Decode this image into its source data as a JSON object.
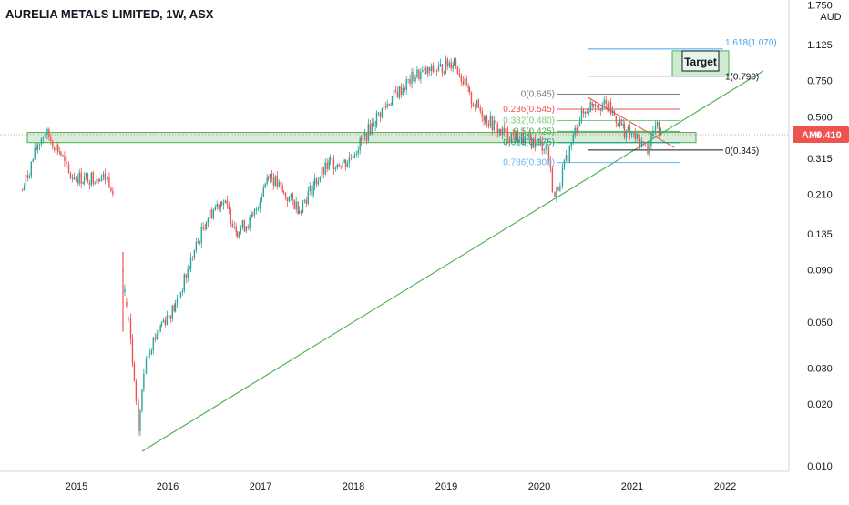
{
  "chart_data": {
    "type": "candlestick",
    "title": "AURELIA METALS LIMITED, 1W, ASX",
    "currency": "AUD",
    "y_scale": "log",
    "ylim": [
      0.009,
      1.75
    ],
    "x_ticks": [
      "2015",
      "2016",
      "2017",
      "2018",
      "2019",
      "2020",
      "2021",
      "2022"
    ],
    "y_ticks": [
      "1.750",
      "1.125",
      "0.750",
      "0.500",
      "0.315",
      "0.210",
      "0.135",
      "0.090",
      "0.050",
      "0.030",
      "0.020",
      "0.010"
    ],
    "last_price": {
      "ticker": "AMI",
      "value": "0.410"
    },
    "colors": {
      "up": "#26a69a",
      "down": "#ef5350",
      "trendline": "#4caf50",
      "zone": "#4caf50",
      "downtrend": "#ef5350",
      "axis_text": "#131722",
      "last_price": "#ef5350"
    },
    "price_path": [
      [
        "2014-06",
        0.22
      ],
      [
        "2014-08",
        0.37
      ],
      [
        "2014-09",
        0.42
      ],
      [
        "2014-11",
        0.33
      ],
      [
        "2014-12",
        0.26
      ],
      [
        "2015-02",
        0.25
      ],
      [
        "2015-04",
        0.26
      ],
      [
        "2015-05",
        0.25
      ],
      [
        "2015-06",
        0.22
      ],
      [
        "2015-07",
        0.09
      ],
      [
        "2015-08",
        0.04
      ],
      [
        "2015-09",
        0.015
      ],
      [
        "2015-10",
        0.035
      ],
      [
        "2015-12",
        0.05
      ],
      [
        "2016-02",
        0.06
      ],
      [
        "2016-04",
        0.1
      ],
      [
        "2016-06",
        0.16
      ],
      [
        "2016-08",
        0.2
      ],
      [
        "2016-10",
        0.14
      ],
      [
        "2016-12",
        0.16
      ],
      [
        "2017-02",
        0.27
      ],
      [
        "2017-04",
        0.21
      ],
      [
        "2017-06",
        0.18
      ],
      [
        "2017-08",
        0.24
      ],
      [
        "2017-10",
        0.3
      ],
      [
        "2017-12",
        0.3
      ],
      [
        "2018-02",
        0.38
      ],
      [
        "2018-04",
        0.5
      ],
      [
        "2018-06",
        0.62
      ],
      [
        "2018-09",
        0.8
      ],
      [
        "2018-12",
        0.85
      ],
      [
        "2019-02",
        0.95
      ],
      [
        "2019-04",
        0.62
      ],
      [
        "2019-06",
        0.5
      ],
      [
        "2019-08",
        0.42
      ],
      [
        "2019-10",
        0.4
      ],
      [
        "2019-12",
        0.38
      ],
      [
        "2020-02",
        0.36
      ],
      [
        "2020-03",
        0.2
      ],
      [
        "2020-04",
        0.27
      ],
      [
        "2020-06",
        0.48
      ],
      [
        "2020-08",
        0.6
      ],
      [
        "2020-10",
        0.55
      ],
      [
        "2020-12",
        0.43
      ],
      [
        "2021-02",
        0.38
      ],
      [
        "2021-03",
        0.35
      ],
      [
        "2021-04",
        0.45
      ],
      [
        "2021-05",
        0.41
      ]
    ],
    "annotations": {
      "support_zone": {
        "low": 0.375,
        "high": 0.42
      },
      "trendline_label": "",
      "fib_retracement": [
        {
          "label": "0(0.645)",
          "value": 0.645,
          "color": "#787b86"
        },
        {
          "label": "0.236(0.545)",
          "value": 0.545,
          "color": "#ef5350"
        },
        {
          "label": "0.382(0.480)",
          "value": 0.48,
          "color": "#81c784"
        },
        {
          "label": "0.5(0.425)",
          "value": 0.425,
          "color": "#4caf50"
        },
        {
          "label": "0.618(0.375)",
          "value": 0.375,
          "color": "#089981"
        },
        {
          "label": "0.786(0.300)",
          "value": 0.3,
          "color": "#64b5f6"
        }
      ],
      "fib_extension": [
        {
          "label": "1.618(1.070)",
          "value": 1.07,
          "color": "#42a5f5"
        },
        {
          "label": "1(0.790)",
          "value": 0.79,
          "color": "#131722"
        },
        {
          "label": "0(0.345)",
          "value": 0.345,
          "color": "#131722"
        }
      ],
      "target_label": "Target"
    }
  }
}
